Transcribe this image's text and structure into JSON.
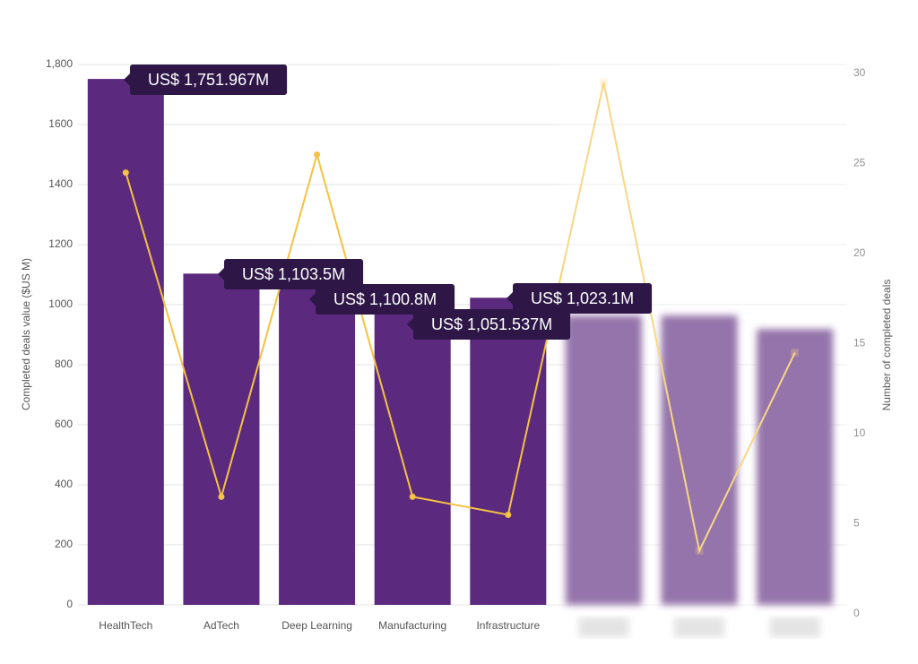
{
  "chart_data": {
    "type": "bar-line",
    "categories": [
      "HealthTech",
      "AdTech",
      "Deep Learning",
      "Manufacturing",
      "Infrastructure",
      null,
      null,
      null
    ],
    "series": [
      {
        "type": "bar",
        "color": "#5b2a7e",
        "values": [
          1751.967,
          1103.5,
          1100.8,
          1051.537,
          1023.1,
          964,
          964,
          919
        ],
        "value_labels": [
          "US$ 1,751.967M",
          "US$ 1,103.5M",
          "US$ 1,100.8M",
          "US$ 1,051.537M",
          "US$ 1,023.1M",
          null,
          null,
          null
        ]
      },
      {
        "type": "line",
        "axis": "y2",
        "color": "#f5c242",
        "values": [
          24,
          6,
          25,
          6,
          5,
          29,
          3,
          14
        ]
      }
    ],
    "ylabel": "Completed deals value ($US M)",
    "y2label": "Number of completed deals",
    "ylim": [
      0,
      1800
    ],
    "yticks": [
      0,
      200,
      400,
      600,
      800,
      1000,
      1200,
      1400,
      1600,
      {
        "value": 1800,
        "label": "1,800"
      }
    ],
    "y2lim": [
      0,
      30
    ],
    "y2ticks": [
      0,
      5,
      10,
      15,
      20,
      25,
      30
    ],
    "grid": true
  }
}
